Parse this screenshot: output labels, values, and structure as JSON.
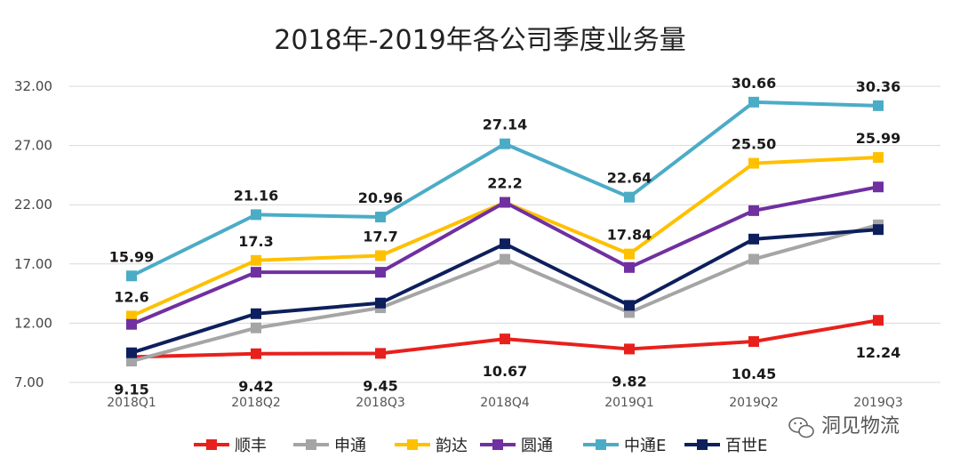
{
  "chart_data": {
    "type": "line",
    "title": "2018年-2019年各公司季度业务量",
    "categories": [
      "2018Q1",
      "2018Q2",
      "2018Q3",
      "2018Q4",
      "2019Q1",
      "2019Q2",
      "2019Q3"
    ],
    "yticks": [
      "7.00",
      "12.00",
      "17.00",
      "22.00",
      "27.00",
      "32.00"
    ],
    "ylim": [
      7,
      32
    ],
    "grid": true,
    "legend_position": "bottom",
    "series": [
      {
        "name": "顺丰",
        "color": "#e8201c",
        "values": [
          9.15,
          9.42,
          9.45,
          10.67,
          9.82,
          10.45,
          12.24
        ],
        "labels": [
          "9.15",
          "9.42",
          "9.45",
          "10.67",
          "9.82",
          "10.45",
          "12.24"
        ],
        "label_pos": "below"
      },
      {
        "name": "申通",
        "color": "#a5a5a5",
        "values": [
          8.8,
          11.6,
          13.3,
          17.4,
          12.9,
          17.4,
          20.3
        ],
        "labels": [],
        "label_pos": "none"
      },
      {
        "name": "韵达",
        "color": "#ffc000",
        "values": [
          12.6,
          17.3,
          17.7,
          22.2,
          17.84,
          25.5,
          25.99
        ],
        "labels": [
          "12.6",
          "17.3",
          "17.7",
          "",
          "17.84",
          "25.50",
          "25.99"
        ],
        "label_pos": "above"
      },
      {
        "name": "圆通",
        "color": "#7030a0",
        "values": [
          11.9,
          16.3,
          16.3,
          22.2,
          16.7,
          21.5,
          23.5
        ],
        "labels": [
          "",
          "",
          "",
          "22.2",
          "",
          "",
          ""
        ],
        "label_pos": "above"
      },
      {
        "name": "中通E",
        "color": "#4bacc6",
        "values": [
          15.99,
          21.16,
          20.96,
          27.14,
          22.64,
          30.66,
          30.36
        ],
        "labels": [
          "15.99",
          "21.16",
          "20.96",
          "27.14",
          "22.64",
          "30.66",
          "30.36"
        ],
        "label_pos": "above"
      },
      {
        "name": "百世E",
        "color": "#0d1f5c",
        "values": [
          9.5,
          12.8,
          13.7,
          18.7,
          13.5,
          19.1,
          19.9
        ],
        "labels": [],
        "label_pos": "none"
      }
    ]
  },
  "watermark": "洞见物流"
}
